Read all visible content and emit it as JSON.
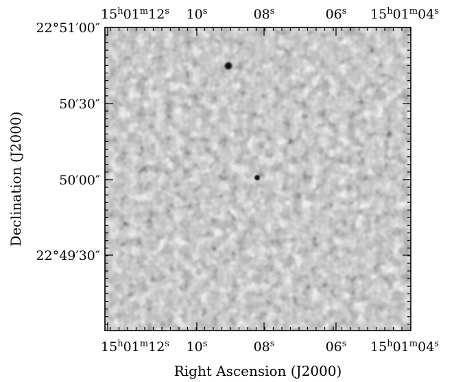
{
  "figure": {
    "xlabel": "Right Ascension (J2000)",
    "ylabel": "Declination (J2000)",
    "colormap": "grayscale",
    "grid": false,
    "ra_ticks": [
      {
        "h": "15",
        "m": "01",
        "s": "12"
      },
      {
        "s": "10"
      },
      {
        "s": "08"
      },
      {
        "s": "06"
      },
      {
        "h": "15",
        "m": "01",
        "s": "04"
      }
    ],
    "dec_ticks": [
      {
        "deg": "22°",
        "min": "51′",
        "sec": "00″"
      },
      {
        "min": "50′",
        "sec": "30″"
      },
      {
        "min": "50′",
        "sec": "00″"
      },
      {
        "deg": "22°",
        "min": "49′",
        "sec": "30″"
      }
    ],
    "units": {
      "hour": "h",
      "minute": "m",
      "second": "s"
    },
    "sources": [
      {
        "ra": "15h01m09.2s",
        "dec": "22°50′45″",
        "brightness": "strong"
      },
      {
        "ra": "15h01m08.1s",
        "dec": "22°50′02″",
        "brightness": "weak"
      }
    ]
  }
}
